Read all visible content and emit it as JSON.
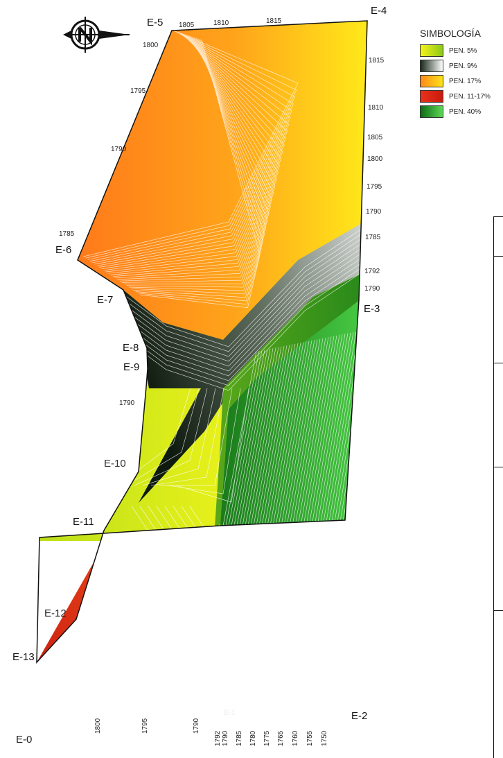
{
  "legend": {
    "title": "SIMBOLOGÍA",
    "items": [
      {
        "label": "PEN. 5%",
        "color_a": "#f6f31a",
        "color_b": "#8cc81a"
      },
      {
        "label": "PEN. 9%",
        "color_a": "#1a2a1a",
        "color_b": "#ffffff"
      },
      {
        "label": "PEN. 17%",
        "color_a": "#ff8a1a",
        "color_b": "#ffe21a"
      },
      {
        "label": "PEN. 11-17%",
        "color_a": "#e8321a",
        "color_b": "#c81a10"
      },
      {
        "label": "PEN. 40%",
        "color_a": "#0e6a14",
        "color_b": "#5cd856"
      }
    ]
  },
  "points": [
    {
      "label": "E-0"
    },
    {
      "label": "E-2"
    },
    {
      "label": "E-3"
    },
    {
      "label": "E-4"
    },
    {
      "label": "E-5"
    },
    {
      "label": "E-6"
    },
    {
      "label": "E-7"
    },
    {
      "label": "E-8"
    },
    {
      "label": "E-9"
    },
    {
      "label": "E-10"
    },
    {
      "label": "E-11"
    },
    {
      "label": "E-12"
    },
    {
      "label": "E-13"
    },
    {
      "label": "E-1"
    }
  ],
  "contour_labels": {
    "top": [
      "1805",
      "1810",
      "1815"
    ],
    "right": [
      "1815",
      "1810",
      "1805",
      "1800",
      "1795",
      "1790",
      "1785",
      "1792",
      "1790"
    ],
    "left": [
      "1800",
      "1795",
      "1790",
      "1785",
      "1790"
    ],
    "bottom": [
      "1800",
      "1795",
      "1790",
      "1792",
      "1790",
      "1785",
      "1780",
      "1775",
      "1765",
      "1760",
      "1755",
      "1750"
    ]
  },
  "colors": {
    "outline": "#111111",
    "contour_line": "#ffffff"
  }
}
